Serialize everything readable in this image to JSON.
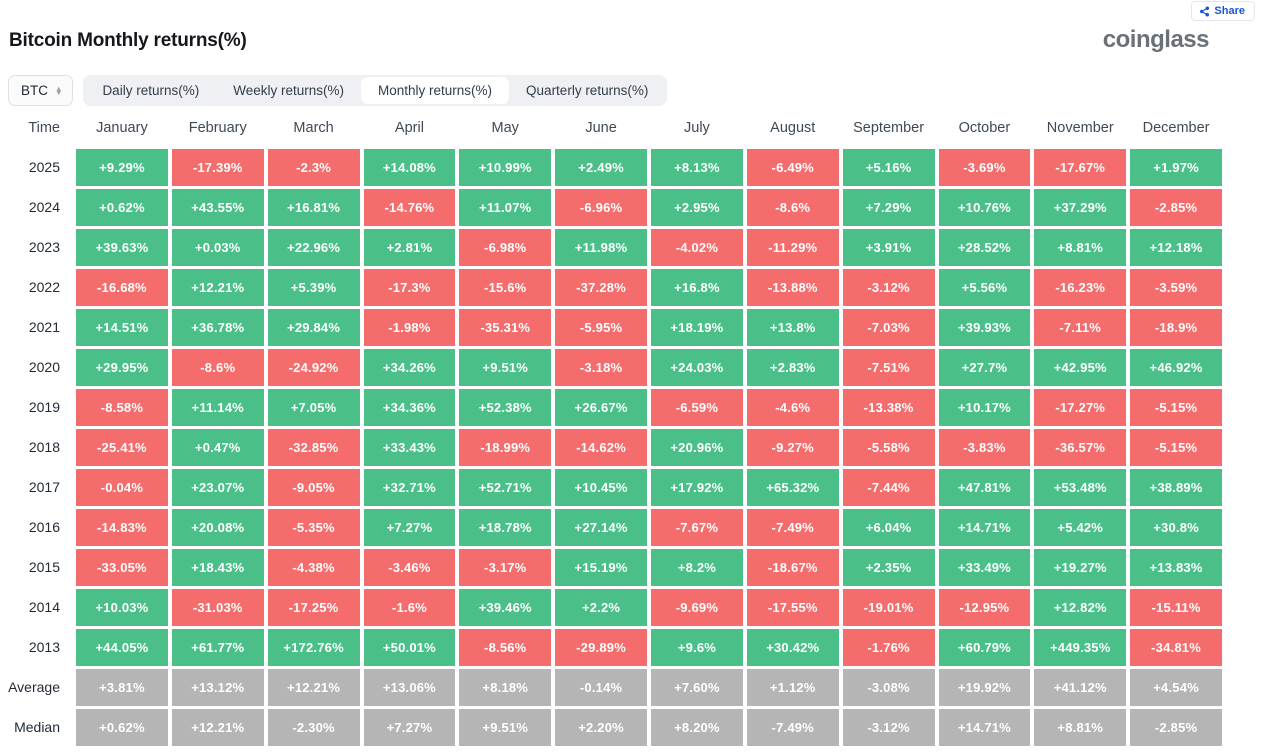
{
  "header": {
    "share_label": "Share",
    "logo": "coinglass"
  },
  "controls": {
    "symbol": "BTC",
    "tabs": [
      {
        "label": "Daily returns(%)",
        "active": false
      },
      {
        "label": "Weekly returns(%)",
        "active": false
      },
      {
        "label": "Monthly returns(%)",
        "active": true
      },
      {
        "label": "Quarterly returns(%)",
        "active": false
      }
    ]
  },
  "colors": {
    "positive": "#4ac088",
    "negative": "#f56c6c",
    "neutral": "#b5b5b5",
    "accent_blue": "#1a56db"
  },
  "chart_data": {
    "type": "table",
    "title": "Bitcoin Monthly returns(%)",
    "row_header": "Time",
    "columns": [
      "January",
      "February",
      "March",
      "April",
      "May",
      "June",
      "July",
      "August",
      "September",
      "October",
      "November",
      "December"
    ],
    "color_rule": "year rows: positive=green, negative=red; aggregate rows: gray",
    "rows": [
      {
        "label": "2025",
        "kind": "year",
        "values": [
          "+9.29%",
          "-17.39%",
          "-2.3%",
          "+14.08%",
          "+10.99%",
          "+2.49%",
          "+8.13%",
          "-6.49%",
          "+5.16%",
          "-3.69%",
          "-17.67%",
          "+1.97%"
        ]
      },
      {
        "label": "2024",
        "kind": "year",
        "values": [
          "+0.62%",
          "+43.55%",
          "+16.81%",
          "-14.76%",
          "+11.07%",
          "-6.96%",
          "+2.95%",
          "-8.6%",
          "+7.29%",
          "+10.76%",
          "+37.29%",
          "-2.85%"
        ]
      },
      {
        "label": "2023",
        "kind": "year",
        "values": [
          "+39.63%",
          "+0.03%",
          "+22.96%",
          "+2.81%",
          "-6.98%",
          "+11.98%",
          "-4.02%",
          "-11.29%",
          "+3.91%",
          "+28.52%",
          "+8.81%",
          "+12.18%"
        ]
      },
      {
        "label": "2022",
        "kind": "year",
        "values": [
          "-16.68%",
          "+12.21%",
          "+5.39%",
          "-17.3%",
          "-15.6%",
          "-37.28%",
          "+16.8%",
          "-13.88%",
          "-3.12%",
          "+5.56%",
          "-16.23%",
          "-3.59%"
        ]
      },
      {
        "label": "2021",
        "kind": "year",
        "values": [
          "+14.51%",
          "+36.78%",
          "+29.84%",
          "-1.98%",
          "-35.31%",
          "-5.95%",
          "+18.19%",
          "+13.8%",
          "-7.03%",
          "+39.93%",
          "-7.11%",
          "-18.9%"
        ]
      },
      {
        "label": "2020",
        "kind": "year",
        "values": [
          "+29.95%",
          "-8.6%",
          "-24.92%",
          "+34.26%",
          "+9.51%",
          "-3.18%",
          "+24.03%",
          "+2.83%",
          "-7.51%",
          "+27.7%",
          "+42.95%",
          "+46.92%"
        ]
      },
      {
        "label": "2019",
        "kind": "year",
        "values": [
          "-8.58%",
          "+11.14%",
          "+7.05%",
          "+34.36%",
          "+52.38%",
          "+26.67%",
          "-6.59%",
          "-4.6%",
          "-13.38%",
          "+10.17%",
          "-17.27%",
          "-5.15%"
        ]
      },
      {
        "label": "2018",
        "kind": "year",
        "values": [
          "-25.41%",
          "+0.47%",
          "-32.85%",
          "+33.43%",
          "-18.99%",
          "-14.62%",
          "+20.96%",
          "-9.27%",
          "-5.58%",
          "-3.83%",
          "-36.57%",
          "-5.15%"
        ]
      },
      {
        "label": "2017",
        "kind": "year",
        "values": [
          "-0.04%",
          "+23.07%",
          "-9.05%",
          "+32.71%",
          "+52.71%",
          "+10.45%",
          "+17.92%",
          "+65.32%",
          "-7.44%",
          "+47.81%",
          "+53.48%",
          "+38.89%"
        ]
      },
      {
        "label": "2016",
        "kind": "year",
        "values": [
          "-14.83%",
          "+20.08%",
          "-5.35%",
          "+7.27%",
          "+18.78%",
          "+27.14%",
          "-7.67%",
          "-7.49%",
          "+6.04%",
          "+14.71%",
          "+5.42%",
          "+30.8%"
        ]
      },
      {
        "label": "2015",
        "kind": "year",
        "values": [
          "-33.05%",
          "+18.43%",
          "-4.38%",
          "-3.46%",
          "-3.17%",
          "+15.19%",
          "+8.2%",
          "-18.67%",
          "+2.35%",
          "+33.49%",
          "+19.27%",
          "+13.83%"
        ]
      },
      {
        "label": "2014",
        "kind": "year",
        "values": [
          "+10.03%",
          "-31.03%",
          "-17.25%",
          "-1.6%",
          "+39.46%",
          "+2.2%",
          "-9.69%",
          "-17.55%",
          "-19.01%",
          "-12.95%",
          "+12.82%",
          "-15.11%"
        ]
      },
      {
        "label": "2013",
        "kind": "year",
        "values": [
          "+44.05%",
          "+61.77%",
          "+172.76%",
          "+50.01%",
          "-8.56%",
          "-29.89%",
          "+9.6%",
          "+30.42%",
          "-1.76%",
          "+60.79%",
          "+449.35%",
          "-34.81%"
        ]
      },
      {
        "label": "Average",
        "kind": "aggregate",
        "values": [
          "+3.81%",
          "+13.12%",
          "+12.21%",
          "+13.06%",
          "+8.18%",
          "-0.14%",
          "+7.60%",
          "+1.12%",
          "-3.08%",
          "+19.92%",
          "+41.12%",
          "+4.54%"
        ]
      },
      {
        "label": "Median",
        "kind": "aggregate",
        "values": [
          "+0.62%",
          "+12.21%",
          "-2.30%",
          "+7.27%",
          "+9.51%",
          "+2.20%",
          "+8.20%",
          "-7.49%",
          "-3.12%",
          "+14.71%",
          "+8.81%",
          "-2.85%"
        ]
      }
    ]
  }
}
